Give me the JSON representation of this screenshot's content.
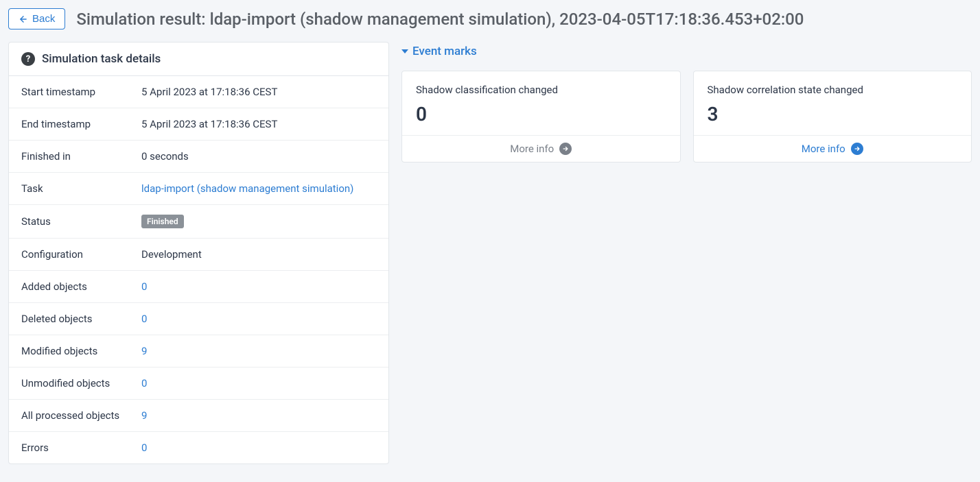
{
  "header": {
    "back_label": "Back",
    "page_title": "Simulation result: ldap-import (shadow management simulation), 2023-04-05T17:18:36.453+02:00"
  },
  "details": {
    "panel_title": "Simulation task details",
    "rows": [
      {
        "label": "Start timestamp",
        "value": "5 April 2023 at 17:18:36 CEST",
        "type": "text"
      },
      {
        "label": "End timestamp",
        "value": "5 April 2023 at 17:18:36 CEST",
        "type": "text"
      },
      {
        "label": "Finished in",
        "value": "0 seconds",
        "type": "text"
      },
      {
        "label": "Task",
        "value": "ldap-import (shadow management simulation)",
        "type": "link"
      },
      {
        "label": "Status",
        "value": "Finished",
        "type": "badge"
      },
      {
        "label": "Configuration",
        "value": "Development",
        "type": "text"
      },
      {
        "label": "Added objects",
        "value": "0",
        "type": "link"
      },
      {
        "label": "Deleted objects",
        "value": "0",
        "type": "link"
      },
      {
        "label": "Modified objects",
        "value": "9",
        "type": "link"
      },
      {
        "label": "Unmodified objects",
        "value": "0",
        "type": "link"
      },
      {
        "label": "All processed objects",
        "value": "9",
        "type": "link"
      },
      {
        "label": "Errors",
        "value": "0",
        "type": "link"
      }
    ]
  },
  "event_marks": {
    "section_title": "Event marks",
    "more_info_label": "More info",
    "cards": [
      {
        "title": "Shadow classification changed",
        "count": "0",
        "muted": true
      },
      {
        "title": "Shadow correlation state changed",
        "count": "3",
        "muted": false
      }
    ]
  },
  "colors": {
    "page_bg": "#f4f6f9",
    "panel_border": "#e2e6ea",
    "accent": "#2d7dd2",
    "text": "#2d3748",
    "badge_bg": "#8b9198",
    "muted_text": "#7a8089"
  }
}
